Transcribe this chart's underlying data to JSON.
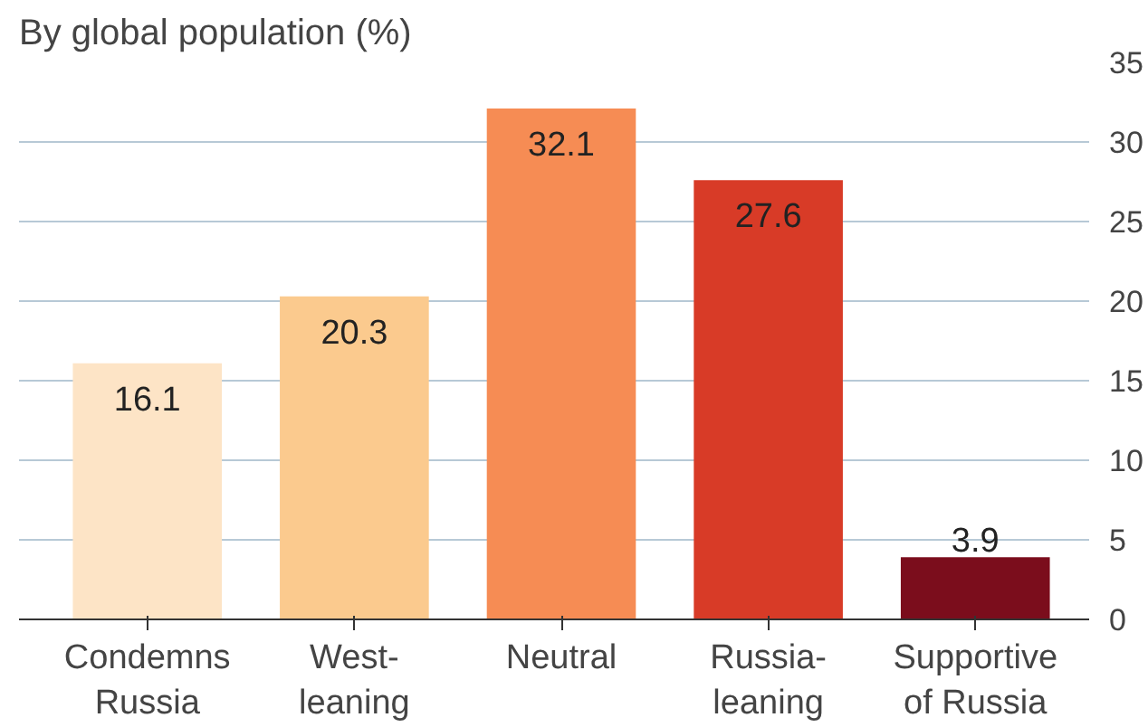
{
  "chart_data": {
    "type": "bar",
    "title": "By global population (%)",
    "categories": [
      "Condemns\nRussia",
      "West-\nleaning",
      "Neutral",
      "Russia-\nleaning",
      "Supportive\nof Russia"
    ],
    "values": [
      16.1,
      20.3,
      32.1,
      27.6,
      3.9
    ],
    "colors": [
      "#fde4c6",
      "#fbca8e",
      "#f68c54",
      "#d83b27",
      "#7b0d1c"
    ],
    "data_labels": true,
    "ylim": [
      0,
      35
    ],
    "yticks": [
      0,
      5,
      10,
      15,
      20,
      25,
      30,
      35
    ],
    "grid": "y"
  }
}
